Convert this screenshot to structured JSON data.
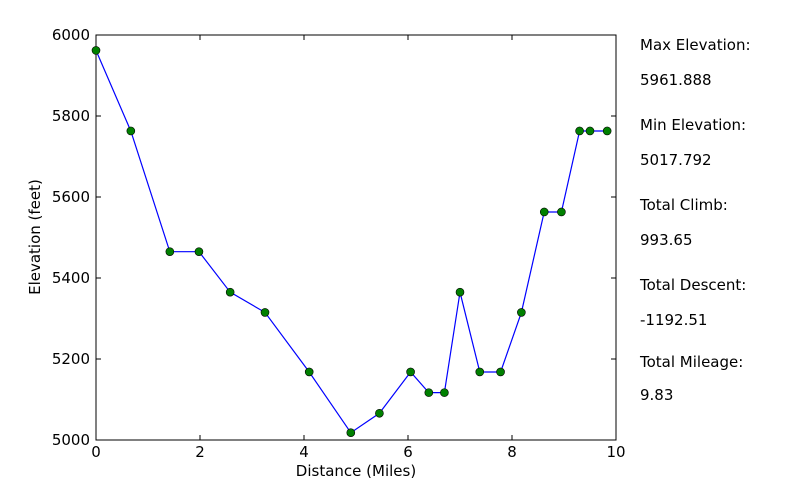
{
  "chart_data": {
    "type": "line",
    "title": "",
    "xlabel": "Distance (Miles)",
    "ylabel": "Elevation (feet)",
    "xlim": [
      0,
      10
    ],
    "ylim": [
      5000,
      6000
    ],
    "x_ticks": [
      0,
      2,
      4,
      6,
      8,
      10
    ],
    "y_ticks": [
      5000,
      5200,
      5400,
      5600,
      5800,
      6000
    ],
    "grid": false,
    "line_color": "#0000ff",
    "marker_color": "#008000",
    "x": [
      0,
      0.67,
      1.42,
      1.98,
      2.58,
      3.25,
      4.1,
      4.9,
      5.45,
      6.05,
      6.4,
      6.7,
      7.0,
      7.38,
      7.78,
      8.18,
      8.62,
      8.95,
      9.3,
      9.5,
      9.83
    ],
    "y": [
      5962,
      5763,
      5465,
      5465,
      5365,
      5315,
      5168,
      5018,
      5066,
      5168,
      5117,
      5117,
      5365,
      5168,
      5168,
      5315,
      5563,
      5563,
      5763,
      5763,
      5763
    ]
  },
  "stats": [
    {
      "label": "Max Elevation:",
      "value": "5961.888"
    },
    {
      "label": "Min Elevation:",
      "value": "5017.792"
    },
    {
      "label": "Total Climb:",
      "value": "993.65"
    },
    {
      "label": "Total Descent:",
      "value": "-1192.51"
    },
    {
      "label": "Total Mileage:",
      "value": "9.83"
    }
  ]
}
